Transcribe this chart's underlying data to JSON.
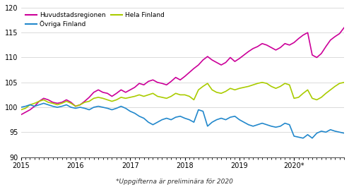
{
  "footnote": "*Uppgifterna är preliminära för 2020",
  "series": {
    "Huvudstadsregionen": {
      "color": "#cc0099",
      "lw": 1.2,
      "values": [
        98.5,
        99.0,
        99.5,
        100.2,
        101.2,
        101.8,
        101.5,
        101.0,
        100.8,
        101.0,
        101.5,
        101.0,
        100.2,
        100.5,
        101.2,
        102.0,
        103.0,
        103.5,
        103.0,
        102.8,
        102.2,
        102.8,
        103.5,
        103.0,
        103.5,
        104.0,
        104.8,
        104.5,
        105.2,
        105.5,
        105.0,
        104.8,
        104.5,
        105.2,
        106.0,
        105.5,
        106.2,
        107.0,
        107.8,
        108.5,
        109.5,
        110.2,
        109.5,
        109.0,
        108.5,
        109.0,
        110.0,
        109.2,
        109.8,
        110.5,
        111.2,
        111.8,
        112.2,
        112.8,
        112.5,
        112.0,
        111.5,
        112.0,
        112.8,
        112.5,
        113.0,
        113.8,
        114.5,
        115.0,
        110.5,
        110.0,
        110.8,
        112.2,
        113.5,
        114.2,
        114.8,
        116.0
      ]
    },
    "Hela Finland": {
      "color": "#aacc00",
      "lw": 1.2,
      "values": [
        99.5,
        99.8,
        100.5,
        100.8,
        101.2,
        101.5,
        101.0,
        100.8,
        100.5,
        100.8,
        101.2,
        100.8,
        100.2,
        100.5,
        101.0,
        101.2,
        101.8,
        102.0,
        101.8,
        101.5,
        101.2,
        101.5,
        102.0,
        101.8,
        102.0,
        102.2,
        102.5,
        102.2,
        102.5,
        102.8,
        102.2,
        102.0,
        101.8,
        102.2,
        102.8,
        102.5,
        102.5,
        102.2,
        101.5,
        103.5,
        104.2,
        104.8,
        103.5,
        103.0,
        102.8,
        103.2,
        103.8,
        103.5,
        103.8,
        104.0,
        104.2,
        104.5,
        104.8,
        105.0,
        104.8,
        104.2,
        103.8,
        104.2,
        104.8,
        104.5,
        101.8,
        102.0,
        102.8,
        103.5,
        101.8,
        101.5,
        102.0,
        102.8,
        103.5,
        104.2,
        104.8,
        105.0
      ]
    },
    "Övriga Finland": {
      "color": "#2288cc",
      "lw": 1.2,
      "values": [
        100.0,
        100.2,
        100.5,
        100.2,
        100.5,
        100.8,
        100.5,
        100.2,
        100.0,
        100.2,
        100.5,
        100.0,
        99.8,
        100.0,
        99.8,
        99.5,
        100.0,
        100.2,
        100.0,
        99.8,
        99.5,
        99.8,
        100.2,
        99.8,
        99.2,
        98.8,
        98.2,
        97.8,
        97.0,
        96.5,
        97.0,
        97.5,
        97.8,
        97.5,
        98.0,
        98.2,
        97.8,
        97.5,
        97.0,
        99.5,
        99.2,
        96.2,
        97.0,
        97.5,
        97.8,
        97.5,
        98.0,
        98.2,
        97.5,
        97.0,
        96.5,
        96.2,
        96.5,
        96.8,
        96.5,
        96.2,
        96.0,
        96.2,
        96.8,
        96.5,
        94.2,
        94.0,
        93.8,
        94.5,
        93.8,
        94.8,
        95.2,
        95.0,
        95.5,
        95.2,
        95.0,
        94.8
      ]
    }
  },
  "ylim": [
    90,
    120
  ],
  "yticks": [
    90,
    95,
    100,
    105,
    110,
    115,
    120
  ],
  "xtick_labels": [
    "2015",
    "2016",
    "2017",
    "2018",
    "2019",
    "2020*"
  ],
  "xtick_positions": [
    0,
    12,
    24,
    36,
    48,
    60
  ],
  "n_months": 72,
  "background_color": "#ffffff",
  "grid_color": "#cccccc",
  "legend_items": [
    {
      "label": "Huvudstadsregionen",
      "color": "#cc0099"
    },
    {
      "Övriga Finland": "Övriga Finland",
      "label": "Övriga Finland",
      "color": "#2288cc"
    },
    {
      "label": "Hela Finland",
      "color": "#aacc00"
    }
  ]
}
